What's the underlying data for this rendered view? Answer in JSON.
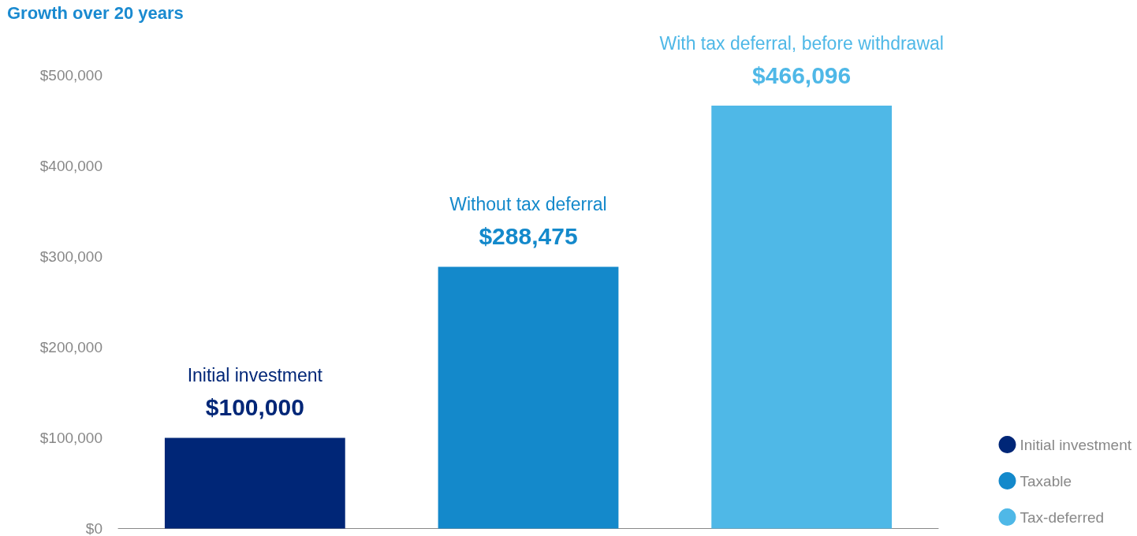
{
  "chart_data": {
    "type": "bar",
    "title": "Growth over 20 years",
    "categories": [
      "Initial investment",
      "Without tax deferral",
      "With tax deferral, before withdrawal"
    ],
    "series": [
      {
        "name": "Initial investment",
        "color": "#002677",
        "values": [
          100000,
          null,
          null
        ],
        "value_labels": [
          "$100,000",
          null,
          null
        ]
      },
      {
        "name": "Taxable",
        "color": "#1489cb",
        "values": [
          null,
          288475,
          null
        ],
        "value_labels": [
          null,
          "$288,475",
          null
        ]
      },
      {
        "name": "Tax-deferred",
        "color": "#4fb8e7",
        "values": [
          null,
          null,
          466096
        ],
        "value_labels": [
          null,
          null,
          "$466,096"
        ]
      }
    ],
    "stacked": true,
    "ylim": [
      0,
      500000
    ],
    "yticks": [
      {
        "value": 0,
        "label": "$0"
      },
      {
        "value": 100000,
        "label": "$100,000"
      },
      {
        "value": 200000,
        "label": "$200,000"
      },
      {
        "value": 300000,
        "label": "$300,000"
      },
      {
        "value": 400000,
        "label": "$400,000"
      },
      {
        "value": 500000,
        "label": "$500,000"
      }
    ],
    "grid": false,
    "legend": "bottom right"
  }
}
